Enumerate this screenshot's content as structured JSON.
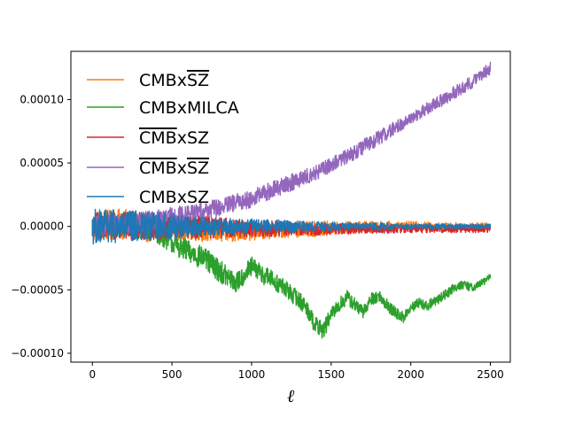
{
  "chart_data": {
    "type": "line",
    "title": "",
    "xlabel": "ℓ",
    "ylabel": "",
    "xlim": [
      -135,
      2625
    ],
    "ylim": [
      -0.000107,
      0.000138
    ],
    "grid": false,
    "legend_position": "upper-left",
    "xticks": [
      0,
      500,
      1000,
      1500,
      2000,
      2500
    ],
    "xtick_labels": [
      "0",
      "500",
      "1000",
      "1500",
      "2000",
      "2500"
    ],
    "yticks": [
      -0.0001,
      -5e-05,
      0,
      5e-05,
      0.0001
    ],
    "ytick_labels": [
      "−0.00010",
      "−0.00005",
      "0.00000",
      "0.00005",
      "0.00010"
    ],
    "series": [
      {
        "name": "CMBxSZ̄",
        "legend": {
          "main": "CMBx",
          "over": "SZ",
          "overline": "suffix"
        },
        "color": "#ff7f0e",
        "x": [
          0,
          200,
          400,
          600,
          800,
          1000,
          1200,
          1400,
          1600,
          1800,
          2000,
          2200,
          2400,
          2500
        ],
        "y": [
          0,
          2e-06,
          -2e-06,
          -2e-06,
          -5e-06,
          -4e-06,
          -3e-06,
          -2e-06,
          -1e-06,
          0,
          0,
          0,
          0,
          0
        ],
        "noise": [
          1.2e-05,
          1.2e-05,
          1.1e-05,
          9e-06,
          8e-06,
          7e-06,
          6e-06,
          6e-06,
          5e-06,
          4e-06,
          4e-06,
          3e-06,
          3e-06,
          3e-06
        ]
      },
      {
        "name": "CMBxMILCA",
        "legend": {
          "main": "CMBxMILCA",
          "over": "",
          "overline": "none"
        },
        "color": "#2ca02c",
        "x": [
          0,
          200,
          400,
          600,
          700,
          800,
          900,
          1000,
          1100,
          1200,
          1300,
          1350,
          1400,
          1450,
          1500,
          1550,
          1600,
          1650,
          1700,
          1750,
          1800,
          1850,
          1900,
          1950,
          2000,
          2050,
          2100,
          2200,
          2300,
          2400,
          2500
        ],
        "y": [
          0,
          0,
          -5e-06,
          -2e-05,
          -2.5e-05,
          -3.5e-05,
          -4.5e-05,
          -3.2e-05,
          -4e-05,
          -4.8e-05,
          -5.8e-05,
          -6.5e-05,
          -7.8e-05,
          -8.2e-05,
          -7e-05,
          -6.2e-05,
          -5.6e-05,
          -6.2e-05,
          -6.8e-05,
          -5.7e-05,
          -5.5e-05,
          -6.2e-05,
          -6.8e-05,
          -7.2e-05,
          -6.5e-05,
          -6e-05,
          -6.3e-05,
          -5.5e-05,
          -4.6e-05,
          -4.8e-05,
          -4e-05
        ],
        "noise": [
          8e-06,
          8e-06,
          8e-06,
          9e-06,
          9e-06,
          9e-06,
          8e-06,
          8e-06,
          8e-06,
          7e-06,
          7e-06,
          7e-06,
          7e-06,
          7e-06,
          6e-06,
          6e-06,
          6e-06,
          6e-06,
          5e-06,
          5e-06,
          5e-06,
          5e-06,
          5e-06,
          5e-06,
          4e-06,
          4e-06,
          4e-06,
          4e-06,
          4e-06,
          3e-06,
          3e-06
        ]
      },
      {
        "name": "C̄M̄B̄xSZ",
        "legend": {
          "main": "SZ",
          "over": "CMB",
          "overline": "prefix"
        },
        "color": "#d62728",
        "x": [
          0,
          400,
          800,
          1200,
          1600,
          2000,
          2400,
          2500
        ],
        "y": [
          0,
          0,
          -1e-06,
          -2e-06,
          -2e-06,
          -2e-06,
          -2e-06,
          -2e-06
        ],
        "noise": [
          1.2e-05,
          1.1e-05,
          8e-06,
          6e-06,
          4e-06,
          3e-06,
          3e-06,
          3e-06
        ]
      },
      {
        "name": "C̄M̄B̄xSZ̄",
        "legend": {
          "main": "",
          "over": "CMB|SZ",
          "overline": "both"
        },
        "color": "#9467bd",
        "x": [
          0,
          200,
          400,
          600,
          800,
          1000,
          1200,
          1400,
          1600,
          1800,
          2000,
          2200,
          2400,
          2500
        ],
        "y": [
          0,
          2e-06,
          5e-06,
          1e-05,
          1.5e-05,
          2.2e-05,
          3.2e-05,
          4.2e-05,
          5.5e-05,
          7e-05,
          8.5e-05,
          0.0001,
          0.000115,
          0.000125
        ],
        "noise": [
          8e-06,
          8e-06,
          8e-06,
          7e-06,
          7e-06,
          7e-06,
          7e-06,
          6e-06,
          6e-06,
          6e-06,
          5e-06,
          5e-06,
          5e-06,
          5e-06
        ]
      },
      {
        "name": "CMBxSZ",
        "legend": {
          "main": "CMBxSZ",
          "over": "",
          "overline": "none"
        },
        "color": "#1f77b4",
        "x": [
          0,
          200,
          400,
          600,
          800,
          1000,
          1200,
          1400,
          1600,
          1800,
          2000,
          2200,
          2400,
          2500
        ],
        "y": [
          0,
          0,
          0,
          0,
          0,
          0,
          0,
          0,
          0,
          0,
          0,
          0,
          0,
          0
        ],
        "noise": [
          1.4e-05,
          1.3e-05,
          1.1e-05,
          9e-06,
          7e-06,
          6e-06,
          5e-06,
          4e-06,
          3e-06,
          3e-06,
          2e-06,
          2e-06,
          2e-06,
          2e-06
        ]
      }
    ]
  }
}
